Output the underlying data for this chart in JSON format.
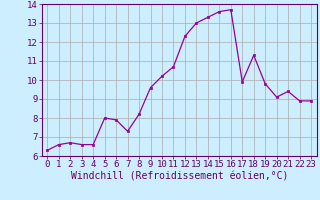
{
  "x": [
    0,
    1,
    2,
    3,
    4,
    5,
    6,
    7,
    8,
    9,
    10,
    11,
    12,
    13,
    14,
    15,
    16,
    17,
    18,
    19,
    20,
    21,
    22,
    23
  ],
  "y": [
    6.3,
    6.6,
    6.7,
    6.6,
    6.6,
    8.0,
    7.9,
    7.3,
    8.2,
    9.6,
    10.2,
    10.7,
    12.3,
    13.0,
    13.3,
    13.6,
    13.7,
    9.9,
    11.3,
    9.8,
    9.1,
    9.4,
    8.9,
    8.9
  ],
  "line_color": "#990099",
  "marker_color": "#990099",
  "bg_color": "#cceeff",
  "grid_color": "#aaaaaa",
  "xlabel": "Windchill (Refroidissement éolien,°C)",
  "ylabel": "",
  "title": "",
  "xlim": [
    -0.5,
    23.5
  ],
  "ylim": [
    6,
    14
  ],
  "yticks": [
    6,
    7,
    8,
    9,
    10,
    11,
    12,
    13,
    14
  ],
  "xticks": [
    0,
    1,
    2,
    3,
    4,
    5,
    6,
    7,
    8,
    9,
    10,
    11,
    12,
    13,
    14,
    15,
    16,
    17,
    18,
    19,
    20,
    21,
    22,
    23
  ],
  "label_color": "#660066",
  "tick_color": "#660066",
  "axis_color": "#660066",
  "xlabel_fontsize": 7.0,
  "tick_fontsize": 6.5
}
